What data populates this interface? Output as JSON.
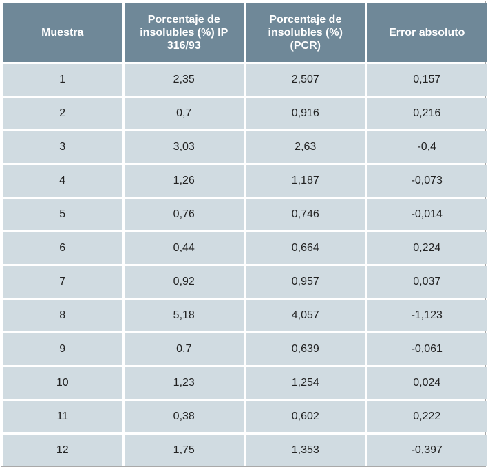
{
  "table": {
    "header": [
      "Muestra",
      "Porcentaje de insolubles (%) IP 316/93",
      "Porcentaje de insolubles (%) (PCR)",
      "Error absoluto"
    ],
    "rows": [
      [
        "1",
        "2,35",
        "2,507",
        "0,157"
      ],
      [
        "2",
        "0,7",
        "0,916",
        "0,216"
      ],
      [
        "3",
        "3,03",
        "2,63",
        "-0,4"
      ],
      [
        "4",
        "1,26",
        "1,187",
        "-0,073"
      ],
      [
        "5",
        "0,76",
        "0,746",
        "-0,014"
      ],
      [
        "6",
        "0,44",
        "0,664",
        "0,224"
      ],
      [
        "7",
        "0,92",
        "0,957",
        "0,037"
      ],
      [
        "8",
        "5,18",
        "4,057",
        "-1,123"
      ],
      [
        "9",
        "0,7",
        "0,639",
        "-0,061"
      ],
      [
        "10",
        "1,23",
        "1,254",
        "0,024"
      ],
      [
        "11",
        "0,38",
        "0,602",
        "0,222"
      ],
      [
        "12",
        "1,75",
        "1,353",
        "-0,397"
      ]
    ]
  }
}
